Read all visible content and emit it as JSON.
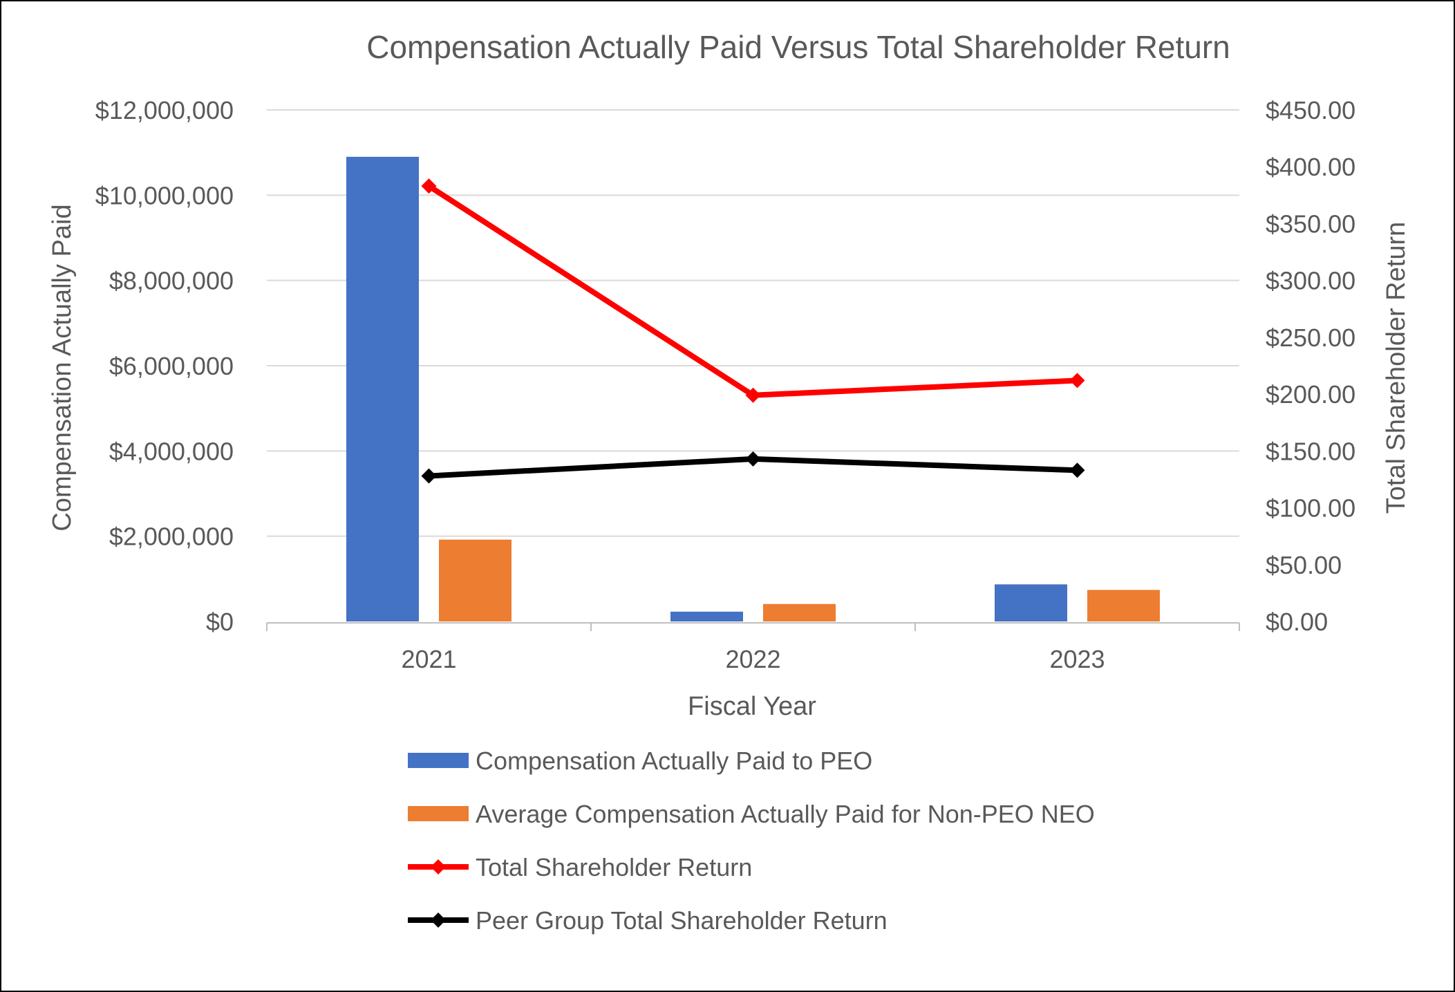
{
  "chart_data": {
    "type": "bar",
    "title": "Compensation Actually Paid Versus Total Shareholder Return",
    "xlabel": "Fiscal Year",
    "ylabel": "Compensation Actually Paid",
    "y2label": "Total Shareholder Return",
    "categories": [
      "2021",
      "2022",
      "2023"
    ],
    "ylim": [
      0,
      12000000
    ],
    "y2lim": [
      0,
      450
    ],
    "yticks": [
      "$0",
      "$2,000,000",
      "$4,000,000",
      "$6,000,000",
      "$8,000,000",
      "$10,000,000",
      "$12,000,000"
    ],
    "y2ticks": [
      "$0.00",
      "$50.00",
      "$100.00",
      "$150.00",
      "$200.00",
      "$250.00",
      "$300.00",
      "$350.00",
      "$400.00",
      "$450.00"
    ],
    "gridlines": true,
    "legend_position": "bottom",
    "series": [
      {
        "name": "Compensation Actually Paid to PEO",
        "kind": "bar",
        "axis": "left",
        "color": "#4472C4",
        "values": [
          10900000,
          230000,
          870000
        ]
      },
      {
        "name": "Average Compensation Actually Paid for Non-PEO NEO",
        "kind": "bar",
        "axis": "left",
        "color": "#ED7D31",
        "values": [
          1920000,
          410000,
          740000
        ]
      },
      {
        "name": "Total Shareholder Return",
        "kind": "line",
        "axis": "right",
        "color": "#FF0000",
        "values": [
          383,
          199,
          212
        ]
      },
      {
        "name": "Peer Group Total Shareholder Return",
        "kind": "line",
        "axis": "right",
        "color": "#000000",
        "values": [
          128,
          143,
          133
        ]
      }
    ]
  }
}
